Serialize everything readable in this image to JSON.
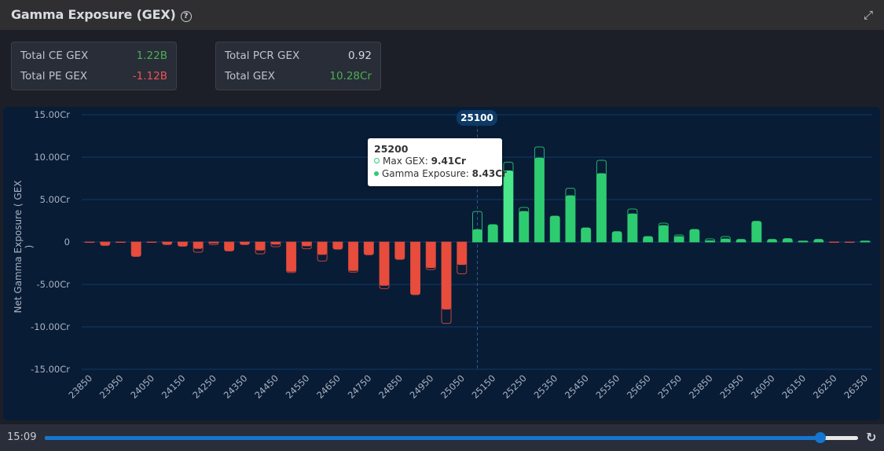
{
  "header": {
    "title": "Gamma Exposure (GEX)",
    "help_icon": "help-circle-icon",
    "expand_icon": "expand-icon"
  },
  "stats": {
    "left": [
      {
        "label": "Total CE GEX",
        "value": "1.22B",
        "color": "green"
      },
      {
        "label": "Total PE GEX",
        "value": "-1.12B",
        "color": "red"
      }
    ],
    "right": [
      {
        "label": "Total PCR GEX",
        "value": "0.92",
        "color": "white"
      },
      {
        "label": "Total GEX",
        "value": "10.28Cr",
        "color": "green"
      }
    ]
  },
  "chart_data": {
    "type": "bar",
    "ylabel": "Net Gamma Exposure ( GEX )",
    "ylim": [
      -15,
      15
    ],
    "yticks": [
      {
        "v": 15,
        "label": "15.00Cr"
      },
      {
        "v": 10,
        "label": "10.00Cr"
      },
      {
        "v": 5,
        "label": "5.00Cr"
      },
      {
        "v": 0,
        "label": "0"
      },
      {
        "v": -5,
        "label": "-5.00Cr"
      },
      {
        "v": -10,
        "label": "-10.00Cr"
      },
      {
        "v": -15,
        "label": "-15.00Cr"
      }
    ],
    "xtick_labels": [
      "23850",
      "23950",
      "24050",
      "24150",
      "24250",
      "24350",
      "24450",
      "24550",
      "24650",
      "24750",
      "24850",
      "24950",
      "25050",
      "25150",
      "25250",
      "25350",
      "25450",
      "25550",
      "25650",
      "25750",
      "25850",
      "25950",
      "26050",
      "26150",
      "26250",
      "26350"
    ],
    "categories": [
      23850,
      23900,
      23950,
      24000,
      24050,
      24100,
      24150,
      24200,
      24250,
      24300,
      24350,
      24400,
      24450,
      24500,
      24550,
      24600,
      24650,
      24700,
      24750,
      24800,
      24850,
      24900,
      24950,
      25000,
      25050,
      25100,
      25150,
      25200,
      25250,
      25300,
      25350,
      25400,
      25450,
      25500,
      25550,
      25600,
      25650,
      25700,
      25750,
      25800,
      25850,
      25900,
      25950,
      26000,
      26050,
      26100,
      26150,
      26200,
      26250,
      26300,
      26350
    ],
    "series": [
      {
        "name": "Gamma Exposure",
        "values": [
          -0.05,
          -0.4,
          -0.05,
          -1.7,
          -0.05,
          -0.3,
          -0.5,
          -0.8,
          -0.15,
          -1.05,
          -0.3,
          -1.0,
          -0.3,
          -3.5,
          -0.5,
          -1.5,
          -0.85,
          -3.4,
          -1.5,
          -5.15,
          -2.05,
          -6.2,
          -3.05,
          -7.95,
          -2.7,
          1.5,
          2.05,
          8.43,
          3.65,
          9.94,
          3.05,
          5.5,
          1.67,
          8.1,
          1.23,
          3.36,
          0.65,
          1.98,
          0.68,
          1.48,
          0.19,
          0.4,
          0.31,
          2.44,
          0.31,
          0.4,
          0.12,
          0.31,
          -0.05,
          -0.05,
          0.12
        ]
      },
      {
        "name": "Max GEX",
        "values": [
          -0.05,
          -0.4,
          -0.05,
          -1.7,
          -0.05,
          -0.3,
          -0.5,
          -1.2,
          -0.3,
          -1.05,
          -0.3,
          -1.4,
          -0.55,
          -3.6,
          -0.8,
          -2.25,
          -0.85,
          -3.55,
          -1.5,
          -5.5,
          -2.05,
          -6.2,
          -3.25,
          -9.6,
          -3.75,
          3.6,
          2.05,
          9.41,
          4.07,
          11.2,
          3.05,
          6.33,
          1.67,
          9.63,
          1.23,
          3.89,
          0.65,
          2.22,
          0.83,
          1.48,
          0.37,
          0.65,
          0.31,
          2.44,
          0.31,
          0.4,
          0.12,
          0.31,
          -0.05,
          -0.05,
          0.12
        ]
      }
    ],
    "colors": {
      "positive": "#2ecc71",
      "negative": "#e74c3c",
      "highlight": "#4ae88a",
      "grid": "#0f3a66"
    },
    "grid": true,
    "crosshair_label": "25100",
    "tooltip": {
      "title": "25200",
      "rows": [
        {
          "label": "Max GEX",
          "value": "9.41Cr"
        },
        {
          "label": "Gamma Exposure",
          "value": "8.43Cr"
        }
      ]
    }
  },
  "footer": {
    "time": "15:09",
    "slider_percent": 95.4,
    "refresh_icon": "refresh-icon"
  }
}
